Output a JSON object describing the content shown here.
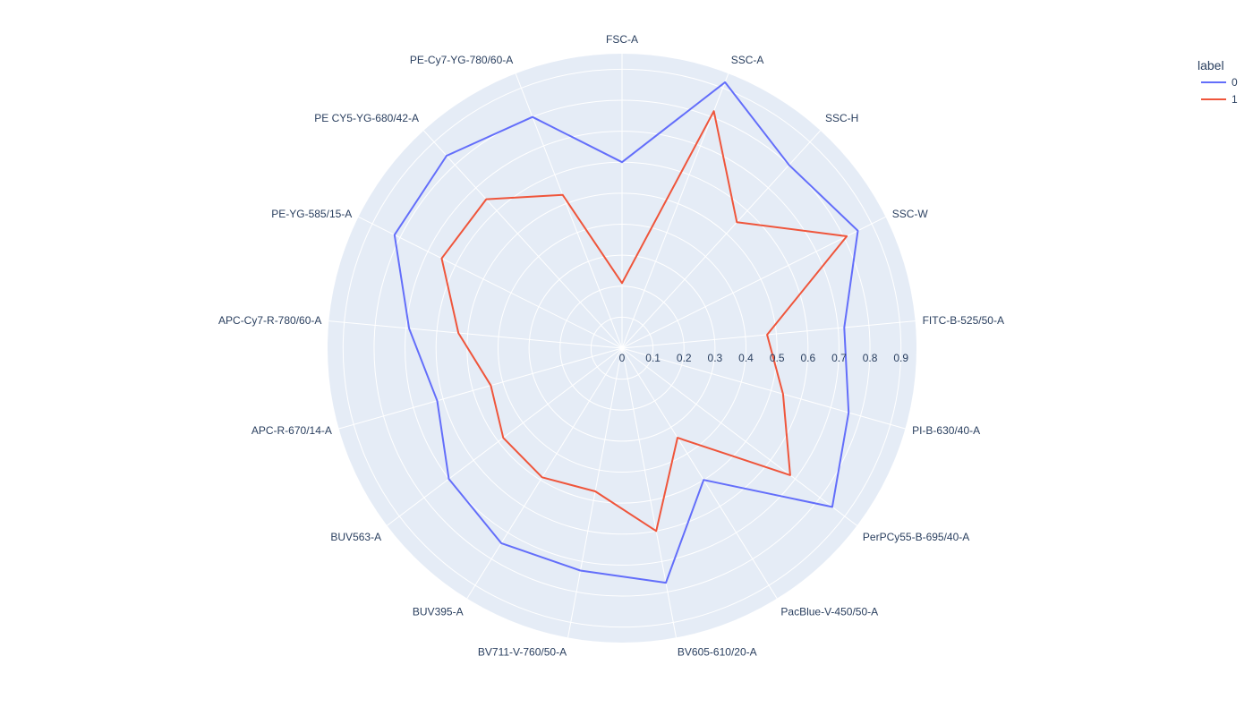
{
  "chart_data": {
    "type": "radar",
    "title": "",
    "categories": [
      "FSC-A",
      "SSC-A",
      "SSC-H",
      "SSC-W",
      "FITC-B-525/50-A",
      "PI-B-630/40-A",
      "PerPCy55-B-695/40-A",
      "PacBlue-V-450/50-A",
      "BV605-610/20-A",
      "BV711-V-760/50-A",
      "BUV395-A",
      "BUV563-A",
      "APC-R-670/14-A",
      "APC-Cy7-R-780/60-A",
      "PE-YG-585/15-A",
      "PE CY5-YG-680/42-A",
      "PE-Cy7-YG-780/60-A"
    ],
    "radial_ticks": [
      "0",
      "0.1",
      "0.2",
      "0.3",
      "0.4",
      "0.5",
      "0.6",
      "0.7",
      "0.8",
      "0.9"
    ],
    "radial_range": [
      0,
      0.95
    ],
    "legend": {
      "title": "label",
      "placement": "top-right"
    },
    "series": [
      {
        "name": "0",
        "color": "#636efa",
        "values": [
          0.6,
          0.92,
          0.8,
          0.85,
          0.72,
          0.76,
          0.85,
          0.5,
          0.77,
          0.73,
          0.74,
          0.7,
          0.62,
          0.69,
          0.82,
          0.84,
          0.8
        ]
      },
      {
        "name": "1",
        "color": "#ef553b",
        "values": [
          0.21,
          0.82,
          0.55,
          0.81,
          0.47,
          0.54,
          0.68,
          0.34,
          0.6,
          0.47,
          0.49,
          0.48,
          0.44,
          0.53,
          0.65,
          0.65,
          0.53
        ]
      }
    ]
  }
}
